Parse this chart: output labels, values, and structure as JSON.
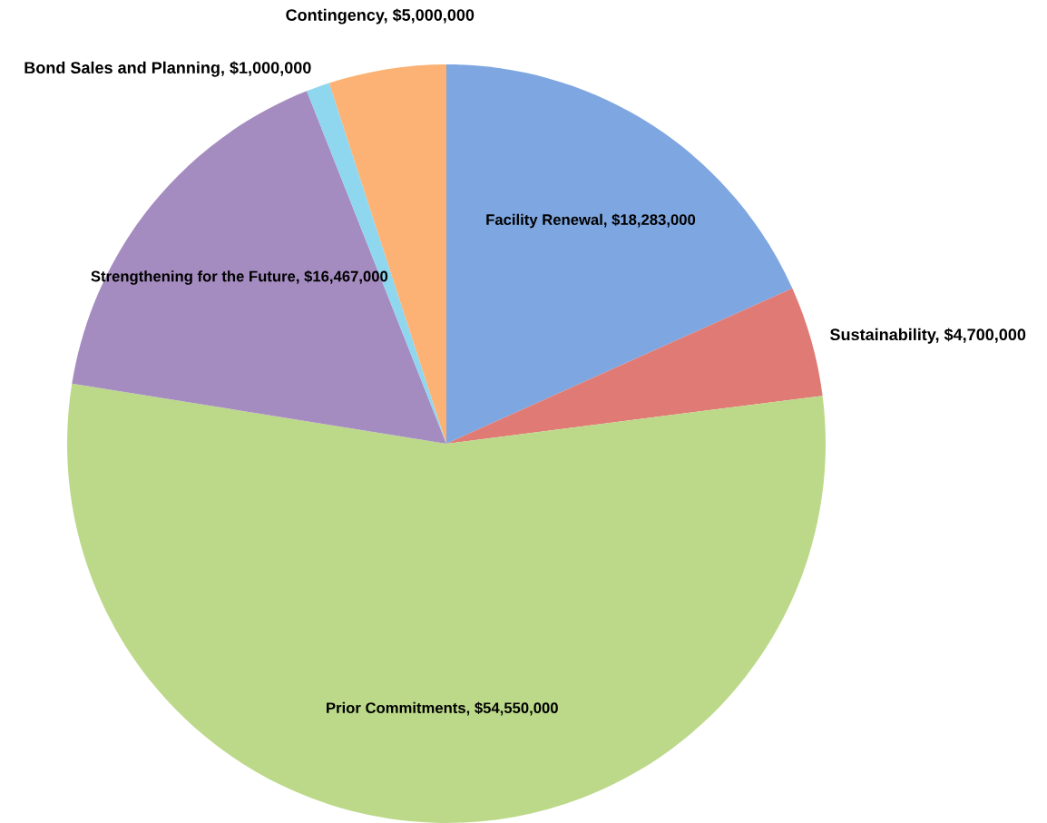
{
  "chart_data": {
    "type": "pie",
    "categories": [
      "Facility Renewal",
      "Sustainability",
      "Prior Commitments",
      "Strengthening for the Future",
      "Bond Sales and Planning",
      "Contingency"
    ],
    "values": [
      18283000,
      4700000,
      54550000,
      16467000,
      1000000,
      5000000
    ],
    "value_labels": [
      "$18,283,000",
      "$4,700,000",
      "$54,550,000",
      "$16,467,000",
      "$1,000,000",
      "$5,000,000"
    ],
    "colors": [
      "#7ea6e0",
      "#e07a74",
      "#bcd98a",
      "#a58cc0",
      "#8fd6ef",
      "#fbb274"
    ],
    "legend": false
  }
}
